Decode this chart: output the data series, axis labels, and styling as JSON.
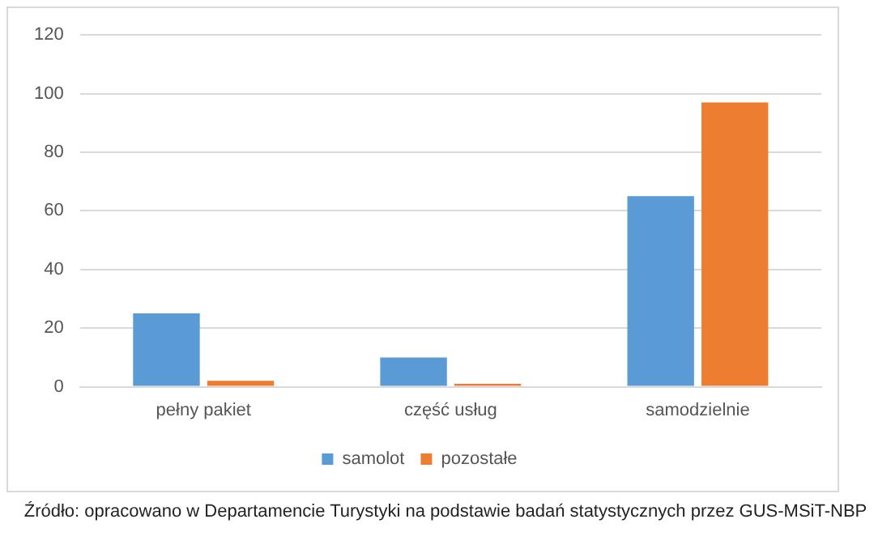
{
  "chart_data": {
    "type": "bar",
    "categories": [
      "pełny pakiet",
      "część usług",
      "samodzielnie"
    ],
    "series": [
      {
        "name": "samolot",
        "color": "#5b9bd5",
        "values": [
          25,
          10,
          65
        ]
      },
      {
        "name": "pozostałe",
        "color": "#ed7d31",
        "values": [
          2,
          1,
          97
        ]
      }
    ],
    "ylim": [
      0,
      120
    ],
    "yticks": [
      0,
      20,
      40,
      60,
      80,
      100,
      120
    ],
    "grid": "y",
    "legend": "bottom",
    "annotations": [
      "Źródło: opracowano w Departamencie Turystyki na podstawie badań statystycznych przez GUS-MSiT-NBP"
    ]
  }
}
